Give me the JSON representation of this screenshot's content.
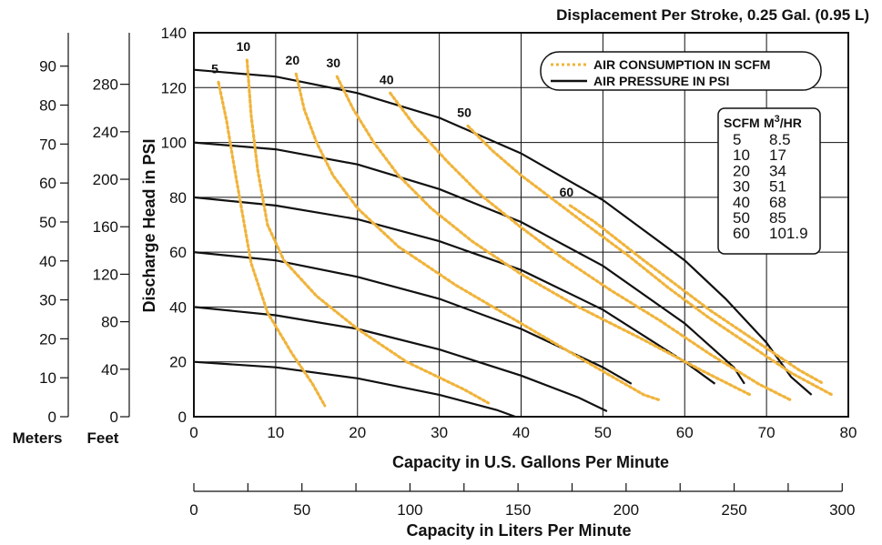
{
  "chart_data": {
    "type": "line",
    "title": "Displacement Per Stroke, 0.25 Gal. (0.95 L)",
    "xlabel": "Capacity in U.S. Gallons Per Minute",
    "ylabel": "Discharge Head in PSI",
    "secondary_xlabel": "Capacity in Liters Per Minute",
    "left_axes": {
      "meters_label": "Meters",
      "feet_label": "Feet"
    },
    "xlim": [
      0,
      80
    ],
    "ylim": [
      0,
      140
    ],
    "x_ticks": [
      "0",
      "10",
      "20",
      "30",
      "40",
      "50",
      "60",
      "70",
      "80"
    ],
    "y_ticks": [
      "0",
      "20",
      "40",
      "60",
      "80",
      "100",
      "120",
      "140"
    ],
    "liters_ticks": [
      "0",
      "50",
      "100",
      "150",
      "200",
      "250",
      "300"
    ],
    "feet_ticks": [
      "0",
      "40",
      "80",
      "120",
      "160",
      "200",
      "240",
      "280"
    ],
    "meters_ticks": [
      "0",
      "10",
      "20",
      "30",
      "40",
      "50",
      "60",
      "70",
      "80",
      "90"
    ],
    "grid": true,
    "legend": {
      "position": "top-right",
      "items": [
        {
          "label": "AIR CONSUMPTION IN SCFM",
          "style": "dotted",
          "color": "#f0b43c"
        },
        {
          "label": "AIR PRESSURE IN PSI",
          "style": "solid",
          "color": "#111111"
        }
      ]
    },
    "conversion_table": {
      "header": [
        "SCFM",
        "M3/HR"
      ],
      "rows": [
        [
          "5",
          "8.5"
        ],
        [
          "10",
          "17"
        ],
        [
          "20",
          "34"
        ],
        [
          "30",
          "51"
        ],
        [
          "40",
          "68"
        ],
        [
          "50",
          "85"
        ],
        [
          "60",
          "101.9"
        ]
      ]
    },
    "pressure_series": [
      {
        "points": [
          [
            0,
            20
          ],
          [
            10,
            18
          ],
          [
            20,
            14
          ],
          [
            30,
            8
          ],
          [
            37,
            2.5
          ],
          [
            39.3,
            0
          ]
        ]
      },
      {
        "points": [
          [
            0,
            40
          ],
          [
            10,
            37
          ],
          [
            20,
            32
          ],
          [
            30,
            24.5
          ],
          [
            40,
            15
          ],
          [
            47,
            7
          ],
          [
            50.5,
            2
          ]
        ]
      },
      {
        "points": [
          [
            0,
            60
          ],
          [
            10,
            57
          ],
          [
            20,
            51
          ],
          [
            30,
            43
          ],
          [
            40,
            32
          ],
          [
            50,
            18
          ],
          [
            53.5,
            12
          ]
        ]
      },
      {
        "points": [
          [
            0,
            80
          ],
          [
            10,
            77
          ],
          [
            20,
            72
          ],
          [
            30,
            64
          ],
          [
            40,
            53.5
          ],
          [
            50,
            39
          ],
          [
            60,
            20
          ],
          [
            63.7,
            12
          ]
        ]
      },
      {
        "points": [
          [
            0,
            100
          ],
          [
            10,
            97.5
          ],
          [
            20,
            92
          ],
          [
            30,
            83
          ],
          [
            40,
            71
          ],
          [
            50,
            55
          ],
          [
            60,
            34
          ],
          [
            66,
            18
          ],
          [
            67.3,
            12
          ]
        ]
      },
      {
        "points": [
          [
            0,
            126.5
          ],
          [
            10,
            124
          ],
          [
            20,
            118
          ],
          [
            30,
            109
          ],
          [
            40,
            96
          ],
          [
            50,
            79
          ],
          [
            60,
            57
          ],
          [
            65,
            43
          ],
          [
            70,
            27
          ],
          [
            73,
            14.5
          ],
          [
            75.5,
            8
          ]
        ]
      }
    ],
    "air_series": [
      {
        "label": "5",
        "points": [
          [
            3,
            122
          ],
          [
            4,
            108
          ],
          [
            5,
            90
          ],
          [
            6,
            73
          ],
          [
            7,
            56
          ],
          [
            9,
            38
          ],
          [
            12,
            23
          ],
          [
            14.5,
            12
          ],
          [
            16,
            4
          ]
        ]
      },
      {
        "label": "10",
        "points": [
          [
            6.5,
            130
          ],
          [
            7,
            110
          ],
          [
            7.8,
            90
          ],
          [
            9,
            70
          ],
          [
            11,
            57
          ],
          [
            15,
            44
          ],
          [
            20,
            32
          ],
          [
            26,
            20
          ],
          [
            33,
            10
          ],
          [
            36,
            5
          ]
        ]
      },
      {
        "label": "20",
        "points": [
          [
            12.5,
            125
          ],
          [
            13.5,
            112
          ],
          [
            15,
            100
          ],
          [
            17,
            88
          ],
          [
            20,
            76
          ],
          [
            25,
            62
          ],
          [
            32,
            48
          ],
          [
            40,
            34
          ],
          [
            48,
            20
          ],
          [
            55,
            8
          ],
          [
            57,
            6
          ]
        ]
      },
      {
        "label": "30",
        "points": [
          [
            17.5,
            124
          ],
          [
            19.5,
            112
          ],
          [
            22,
            100
          ],
          [
            25,
            88
          ],
          [
            29,
            76
          ],
          [
            34,
            64
          ],
          [
            40,
            52
          ],
          [
            47,
            40
          ],
          [
            55,
            28
          ],
          [
            62,
            17
          ],
          [
            68,
            8
          ]
        ]
      },
      {
        "label": "40",
        "points": [
          [
            24,
            118
          ],
          [
            27,
            106
          ],
          [
            31,
            93
          ],
          [
            35,
            81
          ],
          [
            40,
            69
          ],
          [
            45,
            58
          ],
          [
            51,
            46
          ],
          [
            57,
            35
          ],
          [
            63,
            23
          ],
          [
            69,
            12
          ],
          [
            73,
            6
          ]
        ]
      },
      {
        "label": "50",
        "points": [
          [
            33.5,
            106
          ],
          [
            36.5,
            97
          ],
          [
            40,
            88
          ],
          [
            44,
            79
          ],
          [
            48,
            70
          ],
          [
            53,
            59
          ],
          [
            58,
            47
          ],
          [
            63,
            36
          ],
          [
            68,
            26
          ],
          [
            73,
            16
          ],
          [
            78,
            8
          ]
        ]
      },
      {
        "label": "60",
        "points": [
          [
            46,
            77
          ],
          [
            49,
            71
          ],
          [
            52,
            64
          ],
          [
            55,
            57
          ],
          [
            59,
            48
          ],
          [
            63,
            39
          ],
          [
            67,
            31
          ],
          [
            71,
            23
          ],
          [
            74,
            17
          ],
          [
            77,
            12
          ]
        ]
      }
    ]
  }
}
